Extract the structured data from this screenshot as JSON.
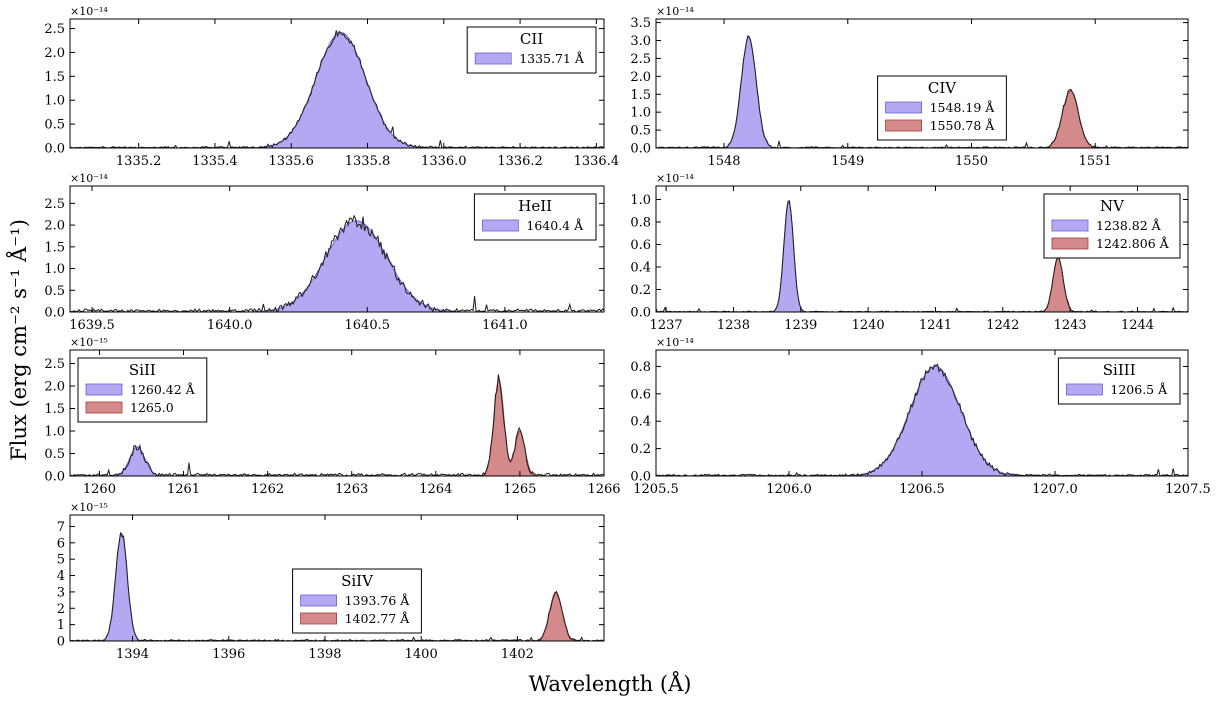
{
  "figure": {
    "ylabel": "Flux (erg cm⁻² s⁻¹ Å⁻¹)",
    "xlabel": "Wavelength (Å)"
  },
  "colors": {
    "blue_fill": "#b3a9f2",
    "blue_edge": "#6b5fd6",
    "red_fill": "#d48a8a",
    "red_edge": "#a33a3a",
    "obs": "#222222"
  },
  "chart_data": [
    {
      "type": "area",
      "ion": "CII",
      "exponent_label": "×10⁻¹⁴",
      "xlim": [
        1335.02,
        1336.42
      ],
      "ylim": [
        0,
        2.7
      ],
      "xticks": [
        1335.2,
        1335.4,
        1335.6,
        1335.8,
        1336.0,
        1336.2,
        1336.4
      ],
      "xtick_labels": [
        "1335.2",
        "1335.4",
        "1335.6",
        "1335.8",
        "1336.0",
        "1336.2",
        "1336.4"
      ],
      "yticks": [
        0,
        0.5,
        1.0,
        1.5,
        2.0,
        2.5
      ],
      "ytick_labels": [
        "0.0",
        "0.5",
        "1.0",
        "1.5",
        "2.0",
        "2.5"
      ],
      "legend": {
        "title": "CII",
        "position": "top-right"
      },
      "series": [
        {
          "name": "1335.71 Å",
          "color": "blue",
          "center": 1335.73,
          "amplitude": 2.42,
          "sigma": 0.065
        }
      ],
      "noise": 0.06,
      "seed": 11
    },
    {
      "type": "area",
      "ion": "CIV",
      "exponent_label": "×10⁻¹⁴",
      "xlim": [
        1547.45,
        1551.75
      ],
      "ylim": [
        0,
        3.6
      ],
      "xticks": [
        1548,
        1549,
        1550,
        1551
      ],
      "xtick_labels": [
        "1548",
        "1549",
        "1550",
        "1551"
      ],
      "yticks": [
        0,
        0.5,
        1.0,
        1.5,
        2.0,
        2.5,
        3.0,
        3.5
      ],
      "ytick_labels": [
        "0.0",
        "0.5",
        "1.0",
        "1.5",
        "2.0",
        "2.5",
        "3.0",
        "3.5"
      ],
      "legend": {
        "title": "CIV",
        "position": "center"
      },
      "series": [
        {
          "name": "1548.19 Å",
          "color": "blue",
          "center": 1548.2,
          "amplitude": 3.1,
          "sigma": 0.06
        },
        {
          "name": "1550.78 Å",
          "color": "red",
          "center": 1550.8,
          "amplitude": 1.6,
          "sigma": 0.065
        }
      ],
      "noise": 0.07,
      "seed": 23
    },
    {
      "type": "area",
      "ion": "HeII",
      "exponent_label": "×10⁻¹⁴",
      "xlim": [
        1639.42,
        1641.36
      ],
      "ylim": [
        0,
        2.9
      ],
      "xticks": [
        1639.5,
        1640.0,
        1640.5,
        1641.0
      ],
      "xtick_labels": [
        "1639.5",
        "1640.0",
        "1640.5",
        "1641.0"
      ],
      "yticks": [
        0,
        0.5,
        1.0,
        1.5,
        2.0,
        2.5
      ],
      "ytick_labels": [
        "0.0",
        "0.5",
        "1.0",
        "1.5",
        "2.0",
        "2.5"
      ],
      "legend": {
        "title": "HeII",
        "position": "top-right"
      },
      "series": [
        {
          "name": "1640.4 Å",
          "color": "blue",
          "center": 1640.46,
          "amplitude": 2.1,
          "sigma": 0.11
        }
      ],
      "noise": 0.14,
      "seed": 37
    },
    {
      "type": "area",
      "ion": "NV",
      "exponent_label": "×10⁻¹⁴",
      "xlim": [
        1236.85,
        1244.75
      ],
      "ylim": [
        0,
        1.12
      ],
      "xticks": [
        1237,
        1238,
        1239,
        1240,
        1241,
        1242,
        1243,
        1244
      ],
      "xtick_labels": [
        "1237",
        "1238",
        "1239",
        "1240",
        "1241",
        "1242",
        "1243",
        "1244"
      ],
      "yticks": [
        0,
        0.2,
        0.4,
        0.6,
        0.8,
        1.0
      ],
      "ytick_labels": [
        "0.0",
        "0.2",
        "0.4",
        "0.6",
        "0.8",
        "1.0"
      ],
      "legend": {
        "title": "NV",
        "position": "top-right"
      },
      "series": [
        {
          "name": "1238.82 Å",
          "color": "blue",
          "center": 1238.82,
          "amplitude": 1.0,
          "sigma": 0.07
        },
        {
          "name": "1242.806 Å",
          "color": "red",
          "center": 1242.82,
          "amplitude": 0.49,
          "sigma": 0.075
        }
      ],
      "noise": 0.015,
      "seed": 41
    },
    {
      "type": "area",
      "ion": "SiII",
      "exponent_label": "×10⁻¹⁵",
      "xlim": [
        1259.65,
        1266.0
      ],
      "ylim": [
        0,
        2.8
      ],
      "xticks": [
        1260,
        1261,
        1262,
        1263,
        1264,
        1265,
        1266
      ],
      "xtick_labels": [
        "1260",
        "1261",
        "1262",
        "1263",
        "1264",
        "1265",
        "1266"
      ],
      "yticks": [
        0,
        0.5,
        1.0,
        1.5,
        2.0,
        2.5
      ],
      "ytick_labels": [
        "0.0",
        "0.5",
        "1.0",
        "1.5",
        "2.0",
        "2.5"
      ],
      "legend": {
        "title": "SiII",
        "position": "top-left"
      },
      "series": [
        {
          "name": "1260.42 Å",
          "color": "blue",
          "center": 1260.45,
          "amplitude": 0.65,
          "sigma": 0.09
        },
        {
          "name": "1265.0",
          "color": "red",
          "center": 1264.75,
          "amplitude": 2.15,
          "sigma": 0.06,
          "extra": [
            1265.0,
            1.0,
            0.06
          ]
        }
      ],
      "noise": 0.12,
      "seed": 53
    },
    {
      "type": "area",
      "ion": "SiIII",
      "exponent_label": "×10⁻¹⁴",
      "xlim": [
        1205.5,
        1207.5
      ],
      "ylim": [
        0,
        0.92
      ],
      "xticks": [
        1205.5,
        1206.0,
        1206.5,
        1207.0,
        1207.5
      ],
      "xtick_labels": [
        "1205.5",
        "1206.0",
        "1206.5",
        "1207.0",
        "1207.5"
      ],
      "yticks": [
        0,
        0.2,
        0.4,
        0.6,
        0.8
      ],
      "ytick_labels": [
        "0.0",
        "0.2",
        "0.4",
        "0.6",
        "0.8"
      ],
      "legend": {
        "title": "SiIII",
        "position": "top-right"
      },
      "series": [
        {
          "name": "1206.5 Å",
          "color": "blue",
          "center": 1206.55,
          "amplitude": 0.8,
          "sigma": 0.095
        }
      ],
      "noise": 0.025,
      "seed": 67
    },
    {
      "type": "area",
      "ion": "SiIV",
      "exponent_label": "×10⁻¹⁵",
      "xlim": [
        1392.7,
        1403.8
      ],
      "ylim": [
        0,
        7.7
      ],
      "xticks": [
        1394,
        1396,
        1398,
        1400,
        1402
      ],
      "xtick_labels": [
        "1394",
        "1396",
        "1398",
        "1400",
        "1402"
      ],
      "yticks": [
        0,
        1,
        2,
        3,
        4,
        5,
        6,
        7
      ],
      "ytick_labels": [
        "0",
        "1",
        "2",
        "3",
        "4",
        "5",
        "6",
        "7"
      ],
      "legend": {
        "title": "SiIV",
        "position": "center"
      },
      "series": [
        {
          "name": "1393.76 Å",
          "color": "blue",
          "center": 1393.77,
          "amplitude": 6.6,
          "sigma": 0.12
        },
        {
          "name": "1402.77 Å",
          "color": "red",
          "center": 1402.8,
          "amplitude": 3.0,
          "sigma": 0.13
        }
      ],
      "noise": 0.18,
      "seed": 79
    }
  ]
}
